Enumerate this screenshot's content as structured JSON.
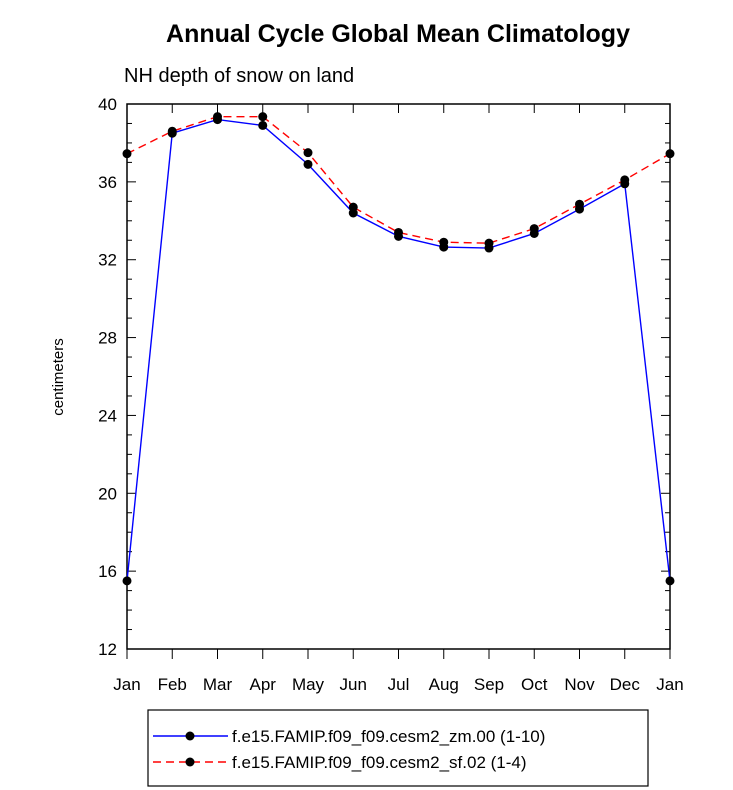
{
  "chart_data": {
    "type": "line",
    "title": "Annual Cycle Global Mean Climatology",
    "subtitle": "NH depth of snow on land",
    "xlabel": "",
    "ylabel": "centimeters",
    "ylim": [
      12,
      40
    ],
    "yticks": [
      12,
      16,
      20,
      24,
      28,
      32,
      36,
      40
    ],
    "ytick_labels": [
      "12",
      "16",
      "20",
      "24",
      "28",
      "32",
      "36",
      "40"
    ],
    "categories": [
      "Jan",
      "Feb",
      "Mar",
      "Apr",
      "May",
      "Jun",
      "Jul",
      "Aug",
      "Sep",
      "Oct",
      "Nov",
      "Dec",
      "Jan"
    ],
    "legend_position": "bottom",
    "series": [
      {
        "name": "f.e15.FAMIP.f09_f09.cesm2_zm.00 (1-10)",
        "color": "#0000ff",
        "dash": "solid",
        "values": [
          15.5,
          38.5,
          39.2,
          38.9,
          36.9,
          34.4,
          33.2,
          32.65,
          32.6,
          33.35,
          34.6,
          35.9,
          15.5
        ]
      },
      {
        "name": "f.e15.FAMIP.f09_f09.cesm2_sf.02 (1-4)",
        "color": "#ff0000",
        "dash": "dashed",
        "values": [
          37.45,
          38.6,
          39.35,
          39.35,
          37.5,
          34.7,
          33.4,
          32.9,
          32.85,
          33.6,
          34.85,
          36.1,
          37.45
        ]
      }
    ]
  }
}
